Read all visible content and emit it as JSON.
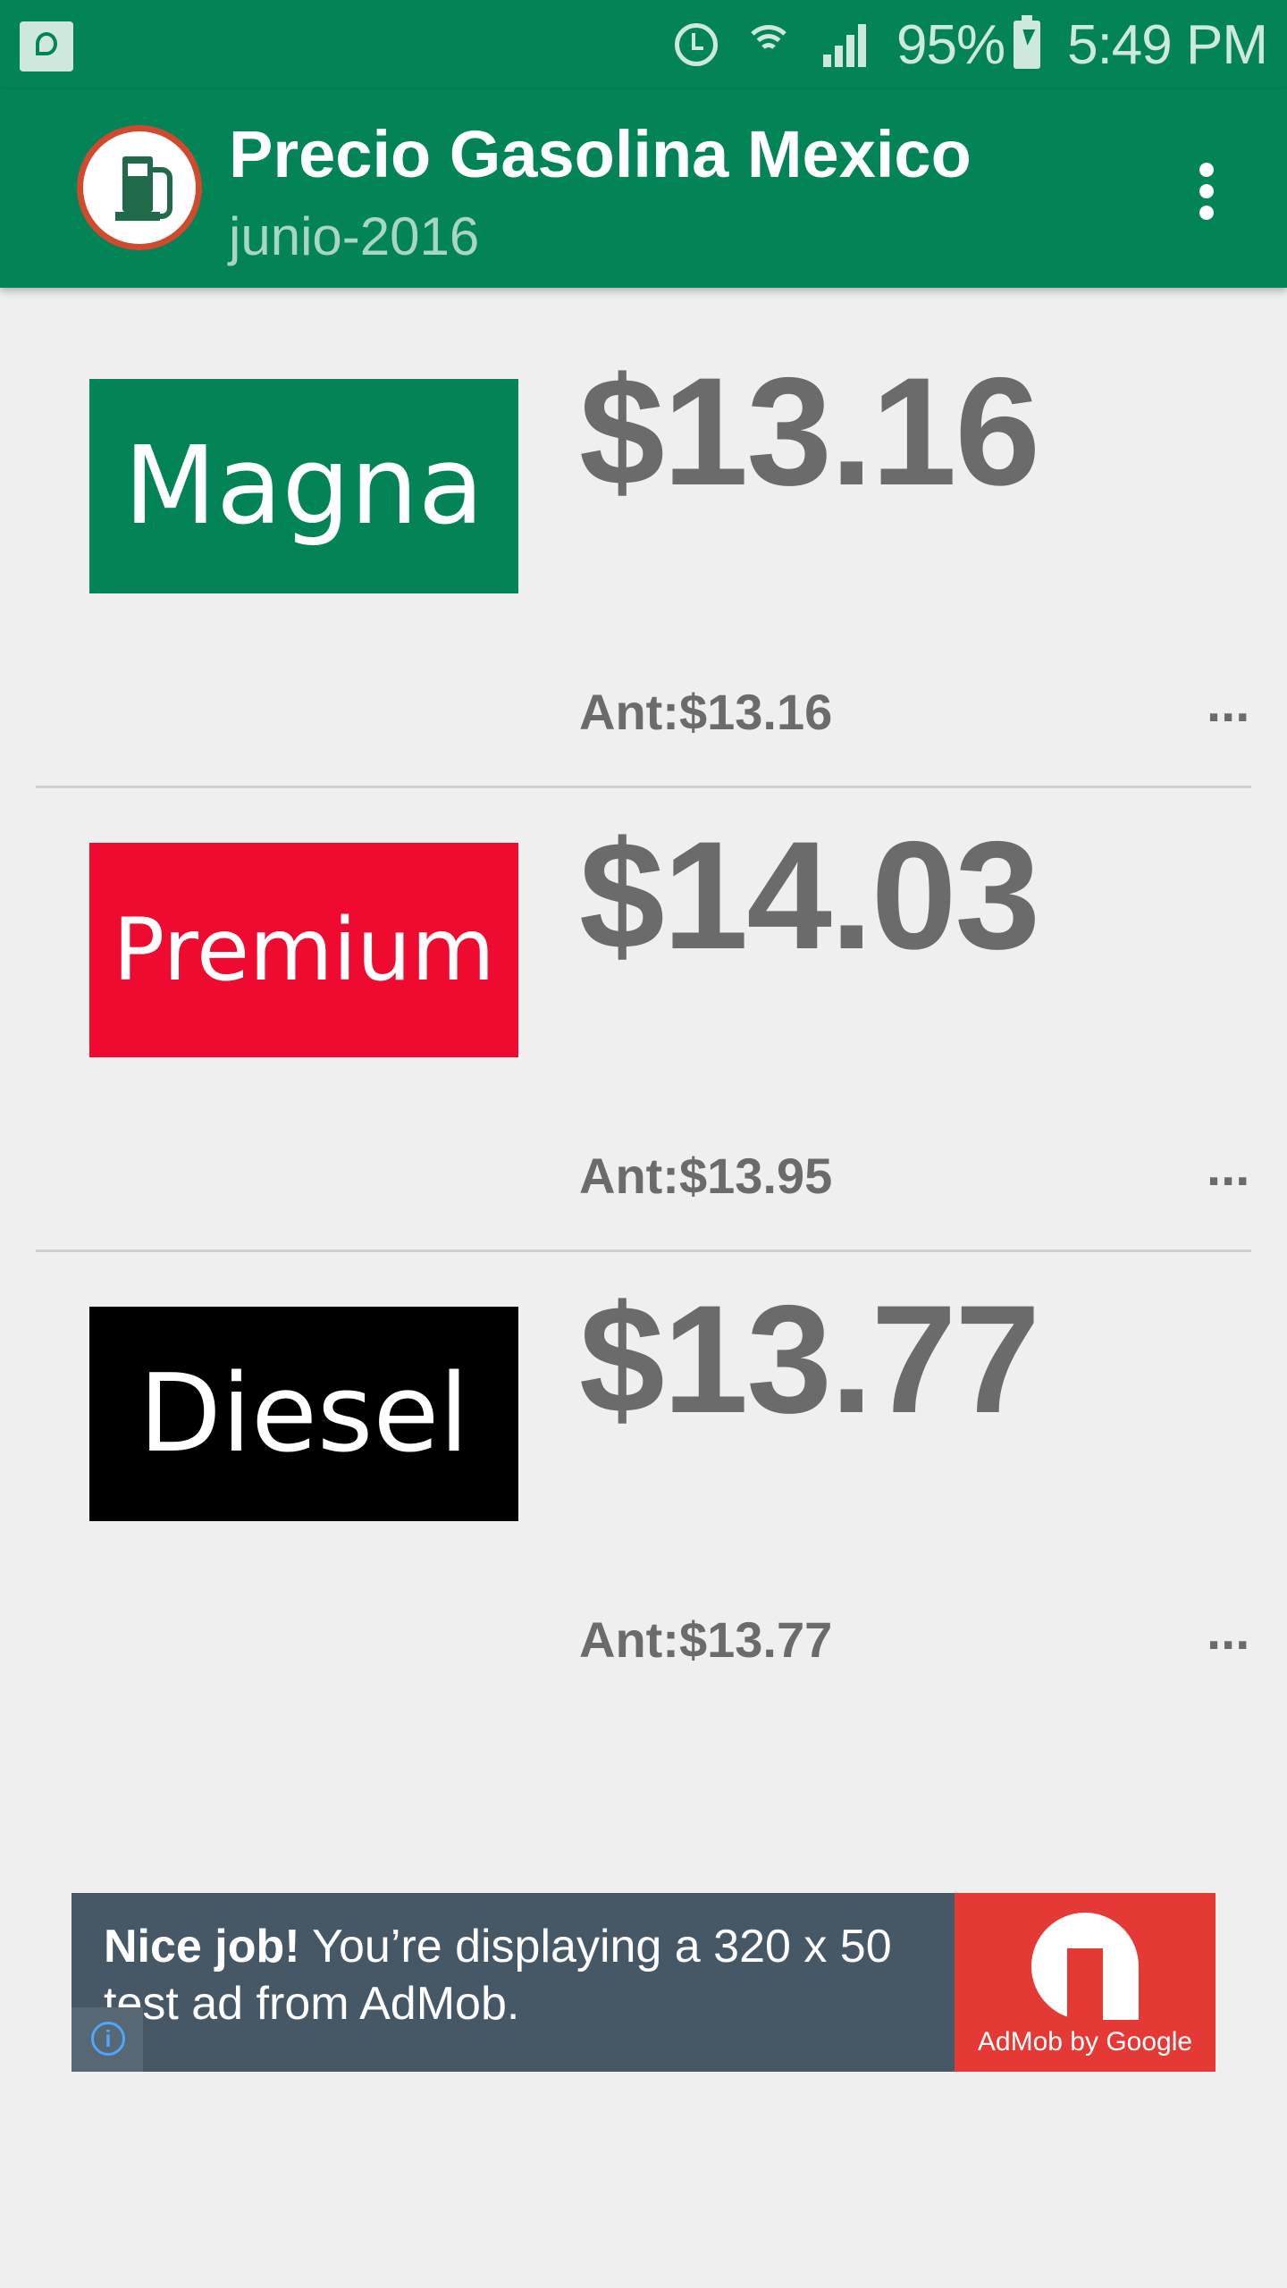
{
  "status_bar": {
    "battery": "95%",
    "time": "5:49 PM",
    "icons": [
      "app-notification-icon",
      "alarm-icon",
      "wifi-icon",
      "signal-icon",
      "battery-charging-icon"
    ]
  },
  "app_bar": {
    "title": "Precio Gasolina Mexico",
    "subtitle": "junio-2016",
    "logo_icon": "fuel-pump-icon",
    "menu_icon": "overflow-menu-icon"
  },
  "fuels": [
    {
      "name": "Magna",
      "price": "$13.16",
      "previous": "Ant:$13.16",
      "more": "...",
      "color": "#038456"
    },
    {
      "name": "Premium",
      "price": "$14.03",
      "previous": "Ant:$13.95",
      "more": "...",
      "color": "#ef0a30"
    },
    {
      "name": "Diesel",
      "price": "$13.77",
      "previous": "Ant:$13.77",
      "more": "...",
      "color": "#000000"
    }
  ],
  "ad": {
    "headline": "Nice job!",
    "body": " You’re displaying a 320 x 50 test ad from AdMob.",
    "info_glyph": "i",
    "brand": "AdMob by Google"
  },
  "colors": {
    "primary": "#038456",
    "background": "#efefef",
    "price_text": "#6b6b6b"
  }
}
